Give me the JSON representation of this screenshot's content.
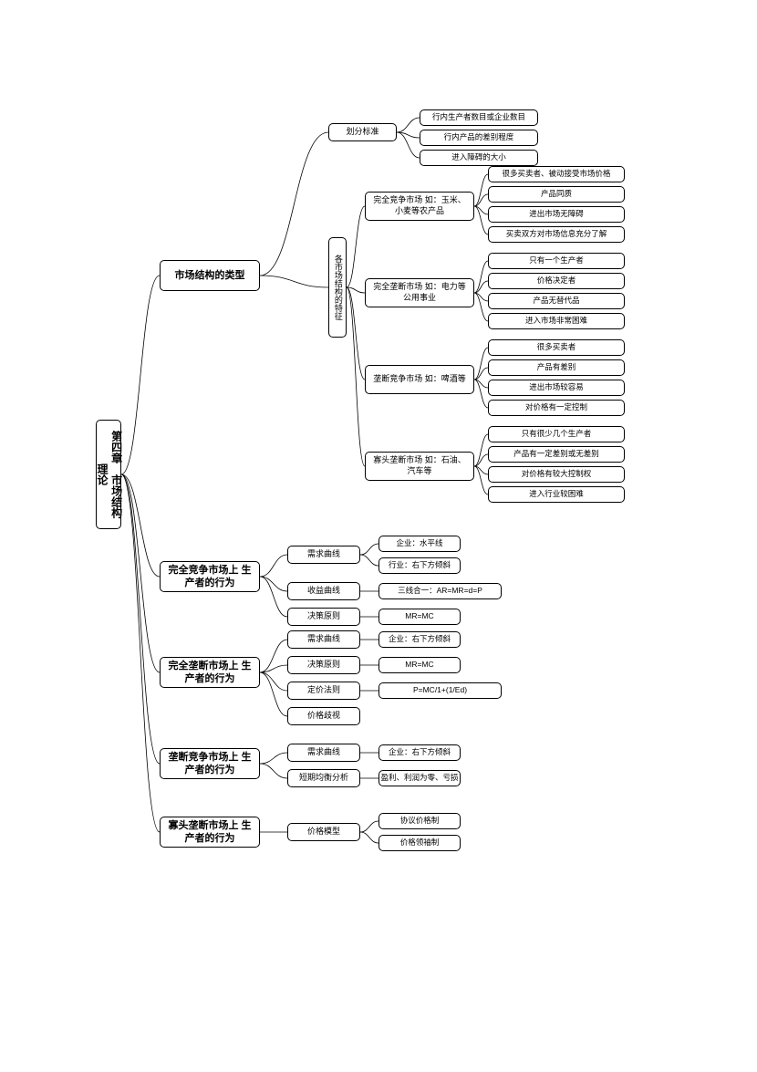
{
  "root": "第四章　市场结构理论",
  "b1": {
    "t": "市场结构的类型",
    "c1": {
      "t": "划分标准",
      "leaves": [
        "行内生产者数目或企业数目",
        "行内产品的差别程度",
        "进入障碍的大小"
      ]
    },
    "c2": {
      "t": "各市场结构的特征",
      "m1": {
        "t": "完全竞争市场\n如：玉米、小麦等农产品",
        "leaves": [
          "很多买卖者、被动接受市场价格",
          "产品同质",
          "进出市场无障碍",
          "买卖双方对市场信息充分了解"
        ]
      },
      "m2": {
        "t": "完全垄断市场\n如：电力等公用事业",
        "leaves": [
          "只有一个生产者",
          "价格决定者",
          "产品无替代品",
          "进入市场非常困难"
        ]
      },
      "m3": {
        "t": "垄断竞争市场\n如：啤酒等",
        "leaves": [
          "很多买卖者",
          "产品有差别",
          "进出市场较容易",
          "对价格有一定控制"
        ]
      },
      "m4": {
        "t": "寡头垄断市场\n如：石油、汽车等",
        "leaves": [
          "只有很少几个生产者",
          "产品有一定差别或无差别",
          "对价格有较大控制权",
          "进入行业较困难"
        ]
      }
    }
  },
  "b2": {
    "t": "完全竞争市场上\n生产者的行为",
    "c1": {
      "t": "需求曲线",
      "leaves": [
        "企业：水平线",
        "行业：右下方倾斜"
      ]
    },
    "c2": {
      "t": "收益曲线",
      "leaves": [
        "三线合一：AR=MR=d=P"
      ]
    },
    "c3": {
      "t": "决策原则",
      "leaves": [
        "MR=MC"
      ]
    }
  },
  "b3": {
    "t": "完全垄断市场上\n生产者的行为",
    "c1": {
      "t": "需求曲线",
      "leaves": [
        "企业：右下方倾斜"
      ]
    },
    "c2": {
      "t": "决策原则",
      "leaves": [
        "MR=MC"
      ]
    },
    "c3": {
      "t": "定价法则",
      "leaves": [
        "P=MC/1+(1/Ed)"
      ]
    },
    "c4": {
      "t": "价格歧视"
    }
  },
  "b4": {
    "t": "垄断竞争市场上\n生产者的行为",
    "c1": {
      "t": "需求曲线",
      "leaves": [
        "企业：右下方倾斜"
      ]
    },
    "c2": {
      "t": "短期均衡分析",
      "leaves": [
        "盈利、利润为零、亏损"
      ]
    }
  },
  "b5": {
    "t": "寡头垄断市场上\n生产者的行为",
    "c1": {
      "t": "价格模型",
      "leaves": [
        "协议价格制",
        "价格领袖制"
      ]
    }
  },
  "style": {
    "bg": "#ffffff",
    "border": "#000000",
    "radius": 5,
    "font": "Microsoft YaHei",
    "root_fs": 12,
    "l1_fs": 11,
    "leaf_fs": 9
  }
}
